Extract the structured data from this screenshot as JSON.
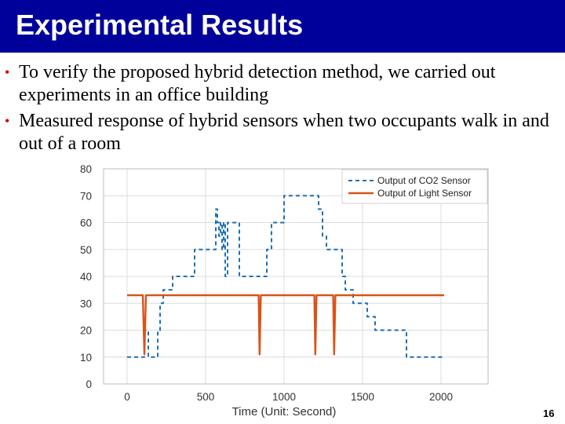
{
  "slide": {
    "title": "Experimental Results",
    "bullets": [
      "To verify the proposed hybrid detection method, we carried out experiments in an office building",
      "Measured response of hybrid sensors when two occupants walk in and out of a room"
    ],
    "page_number": "16",
    "colors": {
      "title_bar": "#00009a",
      "bullet": "#cc0000"
    }
  },
  "chart_data": {
    "type": "line",
    "title": "",
    "xlabel": "Time (Unit: Second)",
    "ylabel": "",
    "xlim": [
      -150,
      2300
    ],
    "ylim": [
      0,
      80
    ],
    "xticks": [
      0,
      500,
      1000,
      1500,
      2000
    ],
    "yticks": [
      0,
      10,
      20,
      30,
      40,
      50,
      60,
      70,
      80
    ],
    "grid": true,
    "legend_position": "top-right",
    "series": [
      {
        "name": "Output of CO2 Sensor",
        "color": "#1f6fb5",
        "style": "dashed",
        "x": [
          0,
          110,
          110,
          135,
          135,
          195,
          195,
          210,
          210,
          230,
          230,
          290,
          290,
          430,
          430,
          490,
          490,
          565,
          565,
          575,
          575,
          585,
          585,
          595,
          595,
          605,
          605,
          615,
          615,
          625,
          625,
          640,
          640,
          715,
          715,
          730,
          730,
          890,
          890,
          920,
          920,
          1000,
          1000,
          1220,
          1220,
          1245,
          1245,
          1270,
          1270,
          1370,
          1370,
          1390,
          1390,
          1440,
          1440,
          1530,
          1530,
          1580,
          1580,
          1595,
          1595,
          1780,
          1780,
          2020
        ],
        "y": [
          10,
          10,
          20,
          20,
          10,
          10,
          20,
          20,
          30,
          30,
          35,
          35,
          40,
          40,
          50,
          50,
          50,
          50,
          65,
          65,
          60,
          60,
          55,
          55,
          60,
          60,
          50,
          50,
          60,
          60,
          40,
          40,
          60,
          60,
          40,
          40,
          40,
          40,
          50,
          50,
          60,
          60,
          70,
          70,
          65,
          65,
          55,
          55,
          50,
          50,
          40,
          40,
          35,
          35,
          30,
          30,
          25,
          25,
          20,
          20,
          20,
          20,
          10,
          10
        ]
      },
      {
        "name": "Output of Light Sensor",
        "color": "#d95319",
        "style": "solid",
        "x": [
          0,
          95,
          100,
          110,
          120,
          125,
          830,
          838,
          844,
          852,
          1185,
          1193,
          1199,
          1207,
          1305,
          1313,
          1319,
          1327,
          2020
        ],
        "y": [
          33,
          33,
          33,
          11,
          33,
          33,
          33,
          33,
          11,
          33,
          33,
          33,
          11,
          33,
          33,
          33,
          11,
          33,
          33
        ]
      }
    ]
  }
}
